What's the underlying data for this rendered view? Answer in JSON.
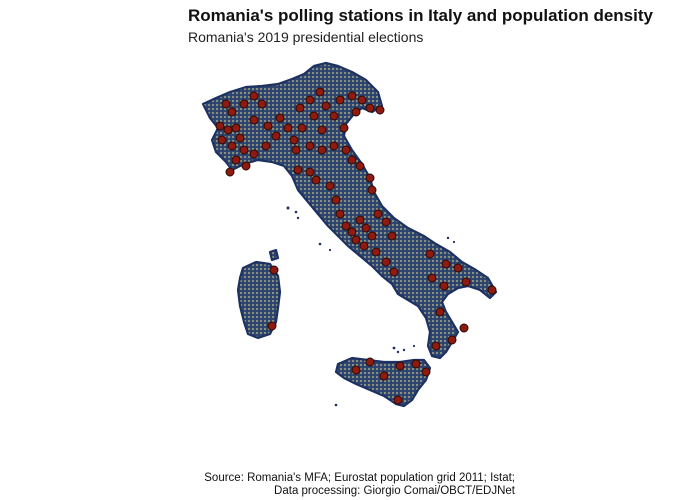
{
  "header": {
    "title": "Romania's polling stations in Italy and population density",
    "subtitle": "Romania's 2019 presidential elections"
  },
  "caption": {
    "line1": "Source: Romania's MFA; Eurostat population grid 2011; Istat;",
    "line2": "Data processing: Giorgio Comai/OBCT/EDJNet"
  },
  "colors": {
    "sparse": "#1d3163",
    "dense": "#d9cf8e",
    "station": "#8e1a10"
  }
}
